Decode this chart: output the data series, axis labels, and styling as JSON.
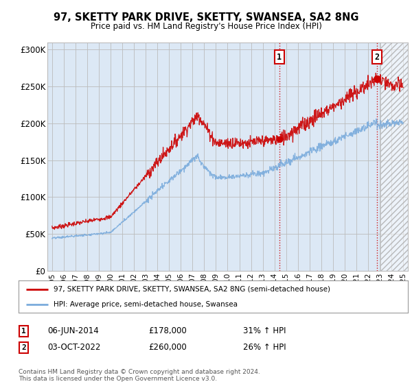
{
  "title": "97, SKETTY PARK DRIVE, SKETTY, SWANSEA, SA2 8NG",
  "subtitle": "Price paid vs. HM Land Registry's House Price Index (HPI)",
  "red_label": "97, SKETTY PARK DRIVE, SKETTY, SWANSEA, SA2 8NG (semi-detached house)",
  "blue_label": "HPI: Average price, semi-detached house, Swansea",
  "footnote": "Contains HM Land Registry data © Crown copyright and database right 2024.\nThis data is licensed under the Open Government Licence v3.0.",
  "annotation1": {
    "num": "1",
    "date": "06-JUN-2014",
    "price": "£178,000",
    "pct": "31% ↑ HPI"
  },
  "annotation2": {
    "num": "2",
    "date": "03-OCT-2022",
    "price": "£260,000",
    "pct": "26% ↑ HPI"
  },
  "ylim": [
    0,
    310000
  ],
  "yticks": [
    0,
    50000,
    100000,
    150000,
    200000,
    250000,
    300000
  ],
  "ytick_labels": [
    "£0",
    "£50K",
    "£100K",
    "£150K",
    "£200K",
    "£250K",
    "£300K"
  ],
  "background_color": "#ffffff",
  "plot_bg": "#dce8f5",
  "red_color": "#cc0000",
  "blue_color": "#7aabdc",
  "grid_color": "#bbbbbb",
  "marker1_x": 2014.42,
  "marker1_y": 178000,
  "marker2_x": 2022.75,
  "marker2_y": 260000,
  "hatch_start": 2023.08,
  "xlim_left": 1994.6,
  "xlim_right": 2025.4
}
